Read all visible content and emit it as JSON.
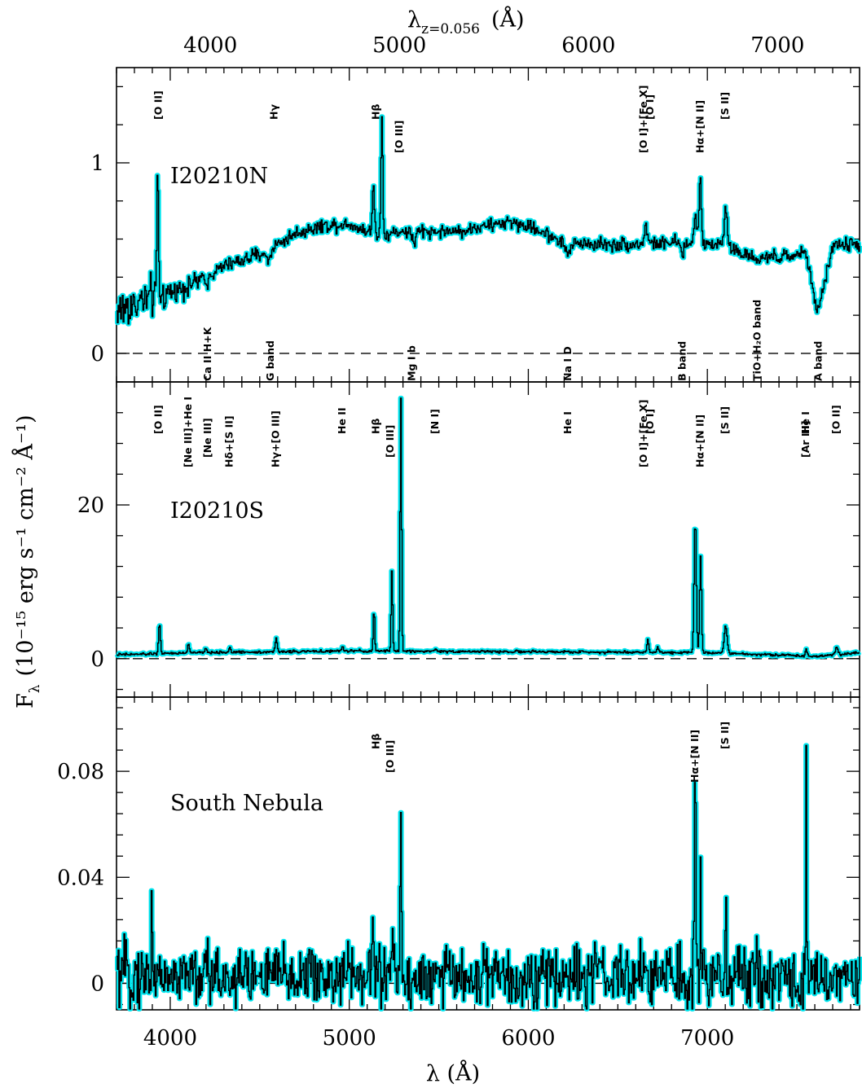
{
  "chart_data": {
    "type": "line",
    "x_axis": {
      "label": "λ (Å)",
      "range": [
        3700,
        7850
      ],
      "ticks": [
        "4000",
        "5000",
        "6000",
        "7000"
      ]
    },
    "top_axis": {
      "label_main": "λ",
      "label_sub": "z=0.056",
      "label_unit": "(Å)",
      "ticks": [
        "4000",
        "5000",
        "6000",
        "7000"
      ],
      "redshift": 0.056
    },
    "y_axis_label": {
      "main": "F",
      "sub": "λ",
      "unit": "(10⁻¹⁵ erg s⁻¹ cm⁻² Å⁻¹)"
    },
    "line_colors": {
      "spectrum": "#000000",
      "error": "#00e5ee"
    },
    "panels": [
      {
        "name": "I20210N",
        "ylim": [
          -0.15,
          1.5
        ],
        "yticks": [
          "0",
          "1"
        ],
        "yticks_values": [
          0,
          1
        ],
        "spectrum": {
          "continuum": [
            [
              3700,
              0.22
            ],
            [
              3850,
              0.28
            ],
            [
              4000,
              0.32
            ],
            [
              4200,
              0.4
            ],
            [
              4300,
              0.46
            ],
            [
              4500,
              0.52
            ],
            [
              4700,
              0.63
            ],
            [
              4850,
              0.67
            ],
            [
              5000,
              0.68
            ],
            [
              5150,
              0.62
            ],
            [
              5300,
              0.64
            ],
            [
              5600,
              0.64
            ],
            [
              5900,
              0.69
            ],
            [
              6050,
              0.65
            ],
            [
              6200,
              0.58
            ],
            [
              6500,
              0.57
            ],
            [
              6800,
              0.58
            ],
            [
              6900,
              0.57
            ],
            [
              7050,
              0.58
            ],
            [
              7200,
              0.52
            ],
            [
              7400,
              0.5
            ],
            [
              7550,
              0.53
            ],
            [
              7610,
              0.2
            ],
            [
              7700,
              0.57
            ],
            [
              7850,
              0.57
            ]
          ],
          "features": [
            [
              3928,
              0.7,
              4
            ],
            [
              4200,
              -0.05,
              6
            ],
            [
              4546,
              -0.06,
              12
            ],
            [
              5133,
              0.25,
              6
            ],
            [
              5180,
              0.62,
              5
            ],
            [
              5360,
              -0.06,
              10
            ],
            [
              6220,
              -0.05,
              15
            ],
            [
              6655,
              0.1,
              8
            ],
            [
              6860,
              -0.06,
              8
            ],
            [
              6930,
              0.15,
              8
            ],
            [
              6958,
              0.37,
              6
            ],
            [
              7100,
              0.22,
              8
            ],
            [
              7270,
              -0.04,
              15
            ]
          ],
          "noise": 0.025,
          "noise_below": [
            3700,
            4200,
            0.08
          ]
        },
        "labels_above": [
          "[O II]",
          "Hγ",
          "Hβ",
          "[O III]",
          "[O I]",
          "[O I]+[Fe X]",
          "Hα+[N II]",
          "[S II]"
        ],
        "labels_below": [
          "Ca II H+K",
          "G band",
          "Mg I b",
          "Na I D",
          "B band",
          "TiO+H₂O band",
          "A band"
        ]
      },
      {
        "name": "I20210S",
        "ylim": [
          -5,
          36
        ],
        "yticks": [
          "0",
          "20"
        ],
        "yticks_values": [
          0,
          20
        ],
        "spectrum": {
          "continuum": [
            [
              3700,
              0.5
            ],
            [
              4200,
              0.8
            ],
            [
              5000,
              1.0
            ],
            [
              6000,
              0.9
            ],
            [
              7000,
              0.8
            ],
            [
              7600,
              0.3
            ],
            [
              7850,
              0.8
            ]
          ],
          "features": [
            [
              3938,
              4.0,
              5
            ],
            [
              4100,
              1.2,
              5
            ],
            [
              4196,
              0.7,
              4
            ],
            [
              4330,
              0.7,
              4
            ],
            [
              4590,
              1.8,
              5
            ],
            [
              4960,
              0.5,
              5
            ],
            [
              5136,
              5.4,
              4
            ],
            [
              5236,
              10.5,
              4
            ],
            [
              5286,
              33,
              4
            ],
            [
              5480,
              0.3,
              6
            ],
            [
              6665,
              1.6,
              5
            ],
            [
              6720,
              0.6,
              5
            ],
            [
              6930,
              17.2,
              6
            ],
            [
              6960,
              12.5,
              5
            ],
            [
              7100,
              3.6,
              8
            ],
            [
              7550,
              0.9,
              5
            ],
            [
              7720,
              0.9,
              8
            ]
          ],
          "noise": 0.12
        },
        "labels_above": [
          "[O II]",
          "[Ne III]+He I",
          "[Ne III]",
          "Hδ+[S II]",
          "Hγ+[O III]",
          "He II",
          "Hβ",
          "[O III]",
          "[N I]",
          "He I",
          "[O I]",
          "[O I]+[Fe X]",
          "Hα+[N II]",
          "[S II]",
          "He I",
          "[Ar III]",
          "[O II]"
        ]
      },
      {
        "name": "South Nebula",
        "ylim": [
          -0.01,
          0.108
        ],
        "yticks": [
          "0",
          "0.04",
          "0.08"
        ],
        "yticks_values": [
          0,
          0.04,
          0.08
        ],
        "spectrum": {
          "continuum": [
            [
              3700,
              0.003
            ],
            [
              7850,
              0.002
            ]
          ],
          "features": [
            [
              3895,
              0.034,
              3
            ],
            [
              5130,
              0.033,
              3
            ],
            [
              5236,
              0.018,
              4
            ],
            [
              5286,
              0.066,
              3
            ],
            [
              6930,
              0.082,
              4
            ],
            [
              6960,
              0.048,
              3
            ],
            [
              7100,
              0.018,
              5
            ],
            [
              7550,
              0.085,
              2
            ]
          ],
          "noise": 0.0085
        },
        "labels_above": [
          "Hβ",
          "[O III]",
          "Hα+[N II]",
          "[S II]"
        ]
      }
    ]
  }
}
